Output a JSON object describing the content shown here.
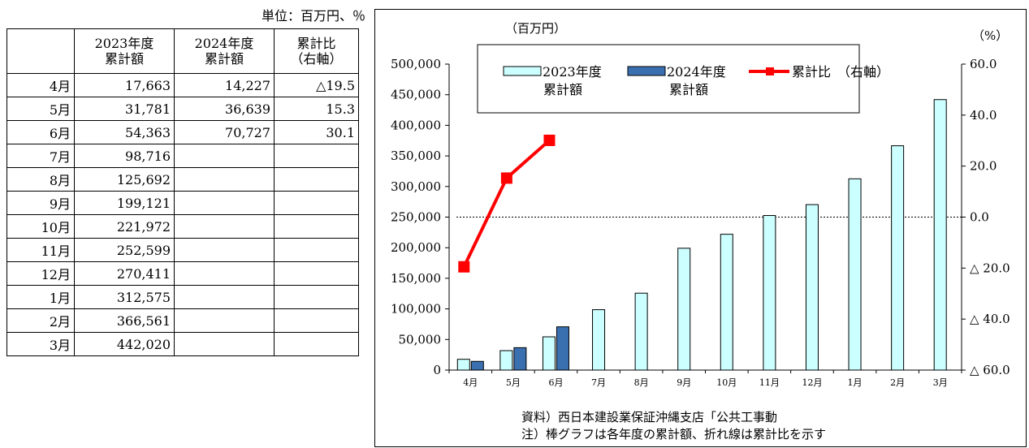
{
  "table": {
    "unit": "単位：百万円、％",
    "headers": [
      "",
      "2023年度\n累計額",
      "2024年度\n累計額",
      "累計比\n（右軸）"
    ],
    "rows": [
      [
        "4月",
        "17,663",
        "14,227",
        "△19.5"
      ],
      [
        "5月",
        "31,781",
        "36,639",
        "15.3"
      ],
      [
        "6月",
        "54,363",
        "70,727",
        "30.1"
      ],
      [
        "7月",
        "98,716",
        "",
        ""
      ],
      [
        "8月",
        "125,692",
        "",
        ""
      ],
      [
        "9月",
        "199,121",
        "",
        ""
      ],
      [
        "10月",
        "221,972",
        "",
        ""
      ],
      [
        "11月",
        "252,599",
        "",
        ""
      ],
      [
        "12月",
        "270,411",
        "",
        ""
      ],
      [
        "1月",
        "312,575",
        "",
        ""
      ],
      [
        "2月",
        "366,561",
        "",
        ""
      ],
      [
        "3月",
        "442,020",
        "",
        ""
      ]
    ]
  },
  "chart_data": {
    "type": "bar",
    "categories": [
      "4月",
      "5月",
      "6月",
      "7月",
      "8月",
      "9月",
      "10月",
      "11月",
      "12月",
      "1月",
      "2月",
      "3月"
    ],
    "series": [
      {
        "name": "2023年度\n累計額",
        "kind": "bar",
        "axis": "left",
        "color": "#ccffff",
        "values": [
          17663,
          31781,
          54363,
          98716,
          125692,
          199121,
          221972,
          252599,
          270411,
          312575,
          366561,
          442020
        ]
      },
      {
        "name": "2024年度\n累計額",
        "kind": "bar",
        "axis": "left",
        "color": "#3a6fb0",
        "values": [
          14227,
          36639,
          70727,
          null,
          null,
          null,
          null,
          null,
          null,
          null,
          null,
          null
        ]
      },
      {
        "name": "累計比　（右軸）",
        "kind": "line",
        "axis": "right",
        "color": "#ff0000",
        "values": [
          -19.5,
          15.3,
          30.1,
          null,
          null,
          null,
          null,
          null,
          null,
          null,
          null,
          null
        ]
      }
    ],
    "y_left": {
      "unit": "（百万円）",
      "ylim": [
        0,
        500000
      ],
      "ticks": [
        0,
        50000,
        100000,
        150000,
        200000,
        250000,
        300000,
        350000,
        400000,
        450000,
        500000
      ],
      "tick_labels": [
        "0",
        "50,000",
        "100,000",
        "150,000",
        "200,000",
        "250,000",
        "300,000",
        "350,000",
        "400,000",
        "450,000",
        "500,000"
      ]
    },
    "y_right": {
      "unit": "（%）",
      "ylim": [
        -60,
        60
      ],
      "ticks": [
        60,
        40,
        20,
        0,
        -20,
        -40,
        -60
      ],
      "tick_labels": [
        "60.0",
        "40.0",
        "20.0",
        "0.0",
        "△ 20.0",
        "△ 40.0",
        "△ 60.0"
      ],
      "reference_line": 0
    },
    "legend_position": "top",
    "grid": false,
    "notes": [
      "資料）西日本建設業保証沖縄支店「公共工事動",
      "注）棒グラフは各年度の累計額、折れ線は累計比を示す"
    ]
  }
}
